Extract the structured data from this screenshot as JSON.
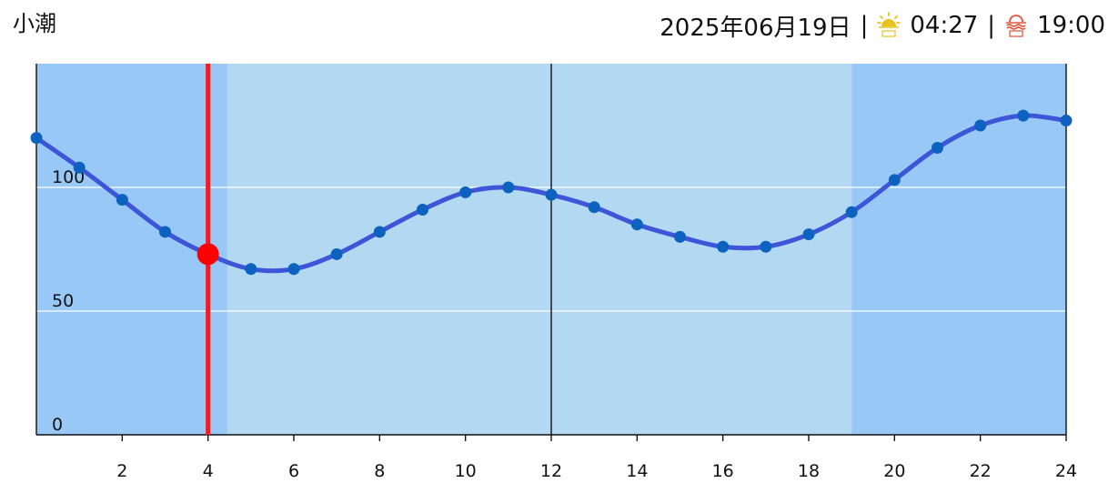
{
  "header": {
    "tide_type": "小潮",
    "date": "2025年06月19日",
    "separator": "|",
    "sunrise_icon": "sunrise-icon",
    "sunrise_time": "04:27",
    "sunset_icon": "sunset-icon",
    "sunset_time": "19:00"
  },
  "colors": {
    "night_band": "#98c8f6",
    "day_band": "#b2d9f1",
    "tide_line": "#3d55d8",
    "tide_point": "#0e62bf",
    "current_marker": "#ff0000",
    "current_line": "#ee1c25",
    "sunrise_icon": "#e8c21c",
    "sunset_icon": "#e0533a"
  },
  "chart_data": {
    "type": "line",
    "title": "",
    "xlabel": "",
    "ylabel": "",
    "xlim": [
      0,
      24
    ],
    "ylim": [
      0,
      150
    ],
    "x_ticks": [
      "2",
      "4",
      "6",
      "8",
      "10",
      "12",
      "14",
      "16",
      "18",
      "20",
      "22",
      "24"
    ],
    "y_ticks": [
      "0",
      "50",
      "100"
    ],
    "grid": true,
    "daylight": {
      "start": 4.45,
      "end": 19.0
    },
    "noon_line": 12,
    "current": {
      "x": 4,
      "y": 73
    },
    "series": [
      {
        "x": [
          0,
          1,
          2,
          3,
          4,
          5,
          6,
          7,
          8,
          9,
          10,
          11,
          12,
          13,
          14,
          15,
          16,
          17,
          18,
          19,
          20,
          21,
          22,
          23,
          24
        ],
        "values": [
          120,
          108,
          95,
          82,
          73,
          67,
          67,
          73,
          82,
          91,
          98,
          100,
          97,
          92,
          85,
          80,
          76,
          76,
          81,
          90,
          103,
          116,
          125,
          129,
          127
        ]
      }
    ]
  }
}
